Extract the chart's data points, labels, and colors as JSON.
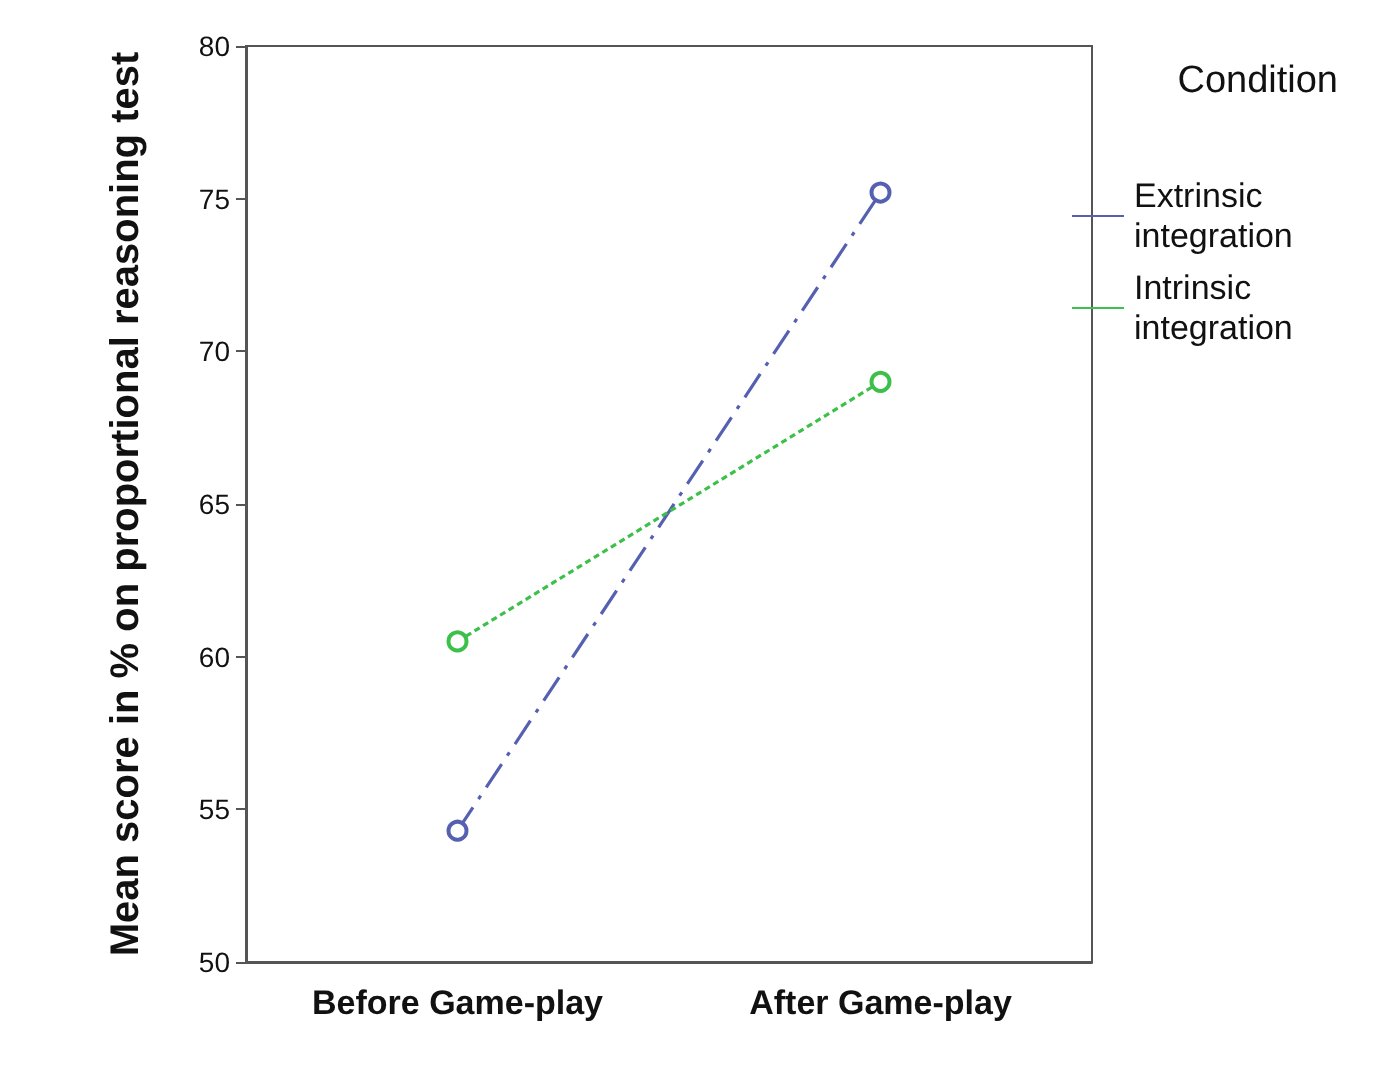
{
  "chart_data": {
    "type": "line",
    "ylabel": "Mean score in % on proportional reasoning test",
    "legend_title": "Condition",
    "categories": [
      "Before Game-play",
      "After Game-play"
    ],
    "series": [
      {
        "name": "Extrinsic integration",
        "color": "#5560b0",
        "values": [
          54.3,
          75.2
        ],
        "line_style": "dashed"
      },
      {
        "name": "Intrinsic integration",
        "color": "#3cc04a",
        "values": [
          60.5,
          69.0
        ],
        "line_style": "dotted"
      }
    ],
    "ylim": [
      50,
      80
    ],
    "yticks": [
      50,
      55,
      60,
      65,
      70,
      75,
      80
    ],
    "grid": false,
    "legend": "right",
    "marker": "circle"
  }
}
